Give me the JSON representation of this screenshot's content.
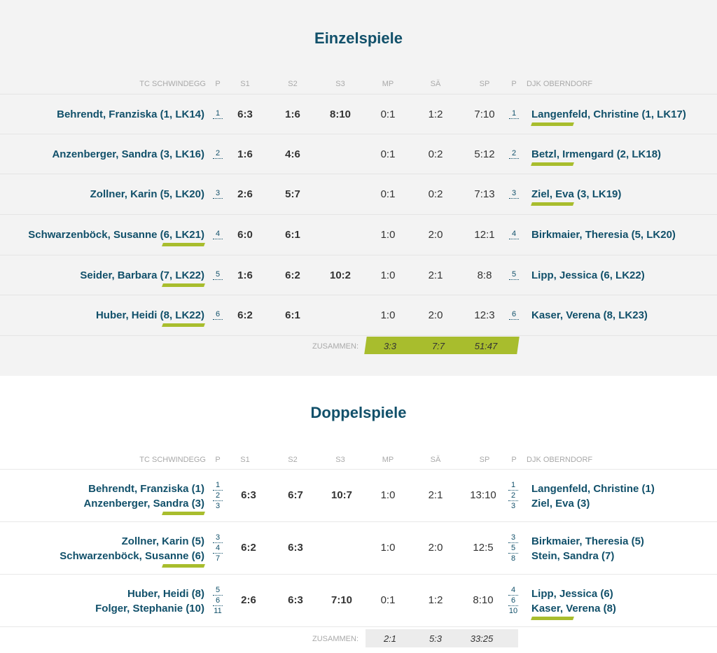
{
  "single": {
    "title": "Einzelspiele",
    "headers": {
      "home_team": "TC SCHWINDEGG",
      "p": "P",
      "s1": "S1",
      "s2": "S2",
      "s3": "S3",
      "mp": "MP",
      "sa": "SÄ",
      "sp": "SP",
      "p2": "P",
      "away_team": "DJK OBERNDORF"
    },
    "rows": [
      {
        "home": "Behrendt, Franziska (1, LK14)",
        "home_pos": "1",
        "s1": "6:3",
        "s2": "1:6",
        "s3": "8:10",
        "mp": "0:1",
        "sa": "1:2",
        "sp": "7:10",
        "away_pos": "1",
        "away": "Langenfeld, Christine (1, LK17)",
        "winner": "away"
      },
      {
        "home": "Anzenberger, Sandra (3, LK16)",
        "home_pos": "2",
        "s1": "1:6",
        "s2": "4:6",
        "s3": "",
        "mp": "0:1",
        "sa": "0:2",
        "sp": "5:12",
        "away_pos": "2",
        "away": "Betzl, Irmengard (2, LK18)",
        "winner": "away"
      },
      {
        "home": "Zollner, Karin (5, LK20)",
        "home_pos": "3",
        "s1": "2:6",
        "s2": "5:7",
        "s3": "",
        "mp": "0:1",
        "sa": "0:2",
        "sp": "7:13",
        "away_pos": "3",
        "away": "Ziel, Eva (3, LK19)",
        "winner": "away"
      },
      {
        "home": "Schwarzenböck, Susanne (6, LK21)",
        "home_pos": "4",
        "s1": "6:0",
        "s2": "6:1",
        "s3": "",
        "mp": "1:0",
        "sa": "2:0",
        "sp": "12:1",
        "away_pos": "4",
        "away": "Birkmaier, Theresia (5, LK20)",
        "winner": "home"
      },
      {
        "home": "Seider, Barbara (7, LK22)",
        "home_pos": "5",
        "s1": "1:6",
        "s2": "6:2",
        "s3": "10:2",
        "mp": "1:0",
        "sa": "2:1",
        "sp": "8:8",
        "away_pos": "5",
        "away": "Lipp, Jessica (6, LK22)",
        "winner": "home"
      },
      {
        "home": "Huber, Heidi (8, LK22)",
        "home_pos": "6",
        "s1": "6:2",
        "s2": "6:1",
        "s3": "",
        "mp": "1:0",
        "sa": "2:0",
        "sp": "12:3",
        "away_pos": "6",
        "away": "Kaser, Verena (8, LK23)",
        "winner": "home"
      }
    ],
    "total": {
      "label": "ZUSAMMEN:",
      "mp": "3:3",
      "sa": "7:7",
      "sp": "51:47"
    }
  },
  "double": {
    "title": "Doppelspiele",
    "headers": {
      "home_team": "TC SCHWINDEGG",
      "p": "P",
      "s1": "S1",
      "s2": "S2",
      "s3": "S3",
      "mp": "MP",
      "sa": "SÄ",
      "sp": "SP",
      "p2": "P",
      "away_team": "DJK OBERNDORF"
    },
    "rows": [
      {
        "home1": "Behrendt, Franziska (1)",
        "home2": "Anzenberger, Sandra (3)",
        "home_pos": [
          "1",
          "2",
          "3"
        ],
        "s1": "6:3",
        "s2": "6:7",
        "s3": "10:7",
        "mp": "1:0",
        "sa": "2:1",
        "sp": "13:10",
        "away_pos": [
          "1",
          "2",
          "3"
        ],
        "away1": "Langenfeld, Christine (1)",
        "away2": "Ziel, Eva (3)",
        "winner": "home"
      },
      {
        "home1": "Zollner, Karin (5)",
        "home2": "Schwarzenböck, Susanne (6)",
        "home_pos": [
          "3",
          "4",
          "7"
        ],
        "s1": "6:2",
        "s2": "6:3",
        "s3": "",
        "mp": "1:0",
        "sa": "2:0",
        "sp": "12:5",
        "away_pos": [
          "3",
          "5",
          "8"
        ],
        "away1": "Birkmaier, Theresia (5)",
        "away2": "Stein, Sandra (7)",
        "winner": "home"
      },
      {
        "home1": "Huber, Heidi (8)",
        "home2": "Folger, Stephanie (10)",
        "home_pos": [
          "5",
          "6",
          "11"
        ],
        "s1": "2:6",
        "s2": "6:3",
        "s3": "7:10",
        "mp": "0:1",
        "sa": "1:2",
        "sp": "8:10",
        "away_pos": [
          "4",
          "6",
          "10"
        ],
        "away1": "Lipp, Jessica (6)",
        "away2": "Kaser, Verena (8)",
        "winner": "away"
      }
    ],
    "total": {
      "label": "ZUSAMMEN:",
      "mp": "2:1",
      "sa": "5:3",
      "sp": "33:25"
    }
  },
  "colors": {
    "title": "#11506a",
    "accent": "#a8bd2d",
    "header": "#a9a9a9",
    "score": "#333333"
  }
}
